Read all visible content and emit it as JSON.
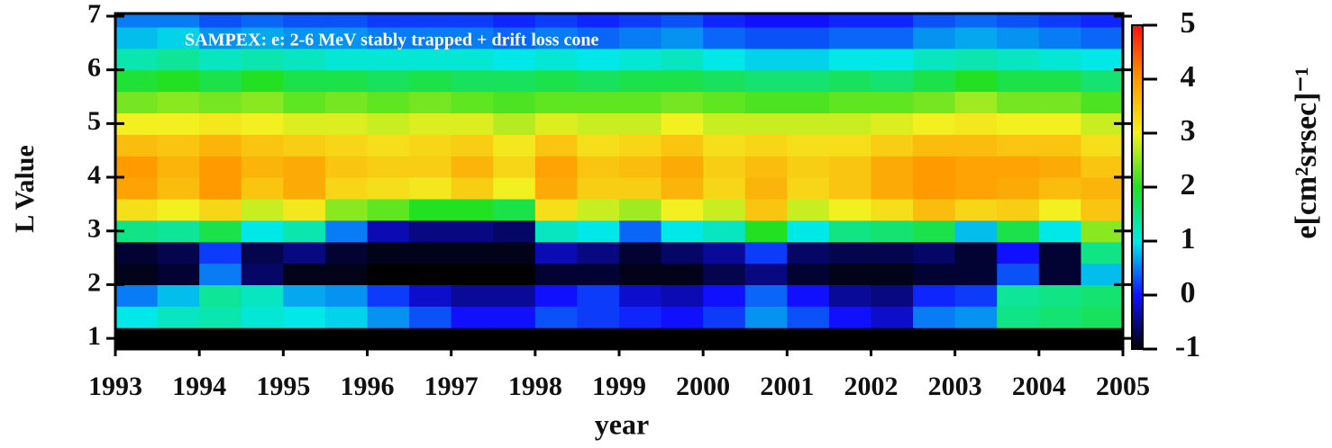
{
  "chart_data": {
    "type": "heatmap",
    "title": "SAMPEX:  e: 2-6 MeV stably trapped + drift loss cone",
    "xlabel": "year",
    "ylabel": "L Value",
    "colorbar_label": "e[cm²srsec]⁻¹",
    "x_edges": [
      1993,
      1993.5,
      1994,
      1994.5,
      1995,
      1995.5,
      1996,
      1996.5,
      1997,
      1997.5,
      1998,
      1998.5,
      1999,
      1999.5,
      2000,
      2000.5,
      2001,
      2001.5,
      2002,
      2002.5,
      2003,
      2003.5,
      2004,
      2004.5,
      2005
    ],
    "y_edges": [
      0.8,
      1.2,
      1.6,
      2.0,
      2.4,
      2.8,
      3.2,
      3.6,
      4.0,
      4.4,
      4.8,
      5.2,
      5.6,
      6.0,
      6.4,
      6.8,
      7.05
    ],
    "values": [
      [
        -1,
        -1,
        -1,
        -1,
        -1,
        -1,
        -1,
        -1,
        -1,
        -1,
        -1,
        -1,
        -1,
        -1,
        -1,
        -1,
        -1,
        -1,
        -1,
        -1,
        -1,
        -1,
        -1,
        -1
      ],
      [
        1.0,
        1.2,
        1.3,
        1.1,
        1.0,
        0.9,
        0.6,
        0.3,
        0.0,
        0.0,
        0.3,
        0.2,
        0.1,
        0.0,
        0.2,
        0.6,
        0.3,
        0.0,
        -0.2,
        0.5,
        0.6,
        1.5,
        1.6,
        1.7
      ],
      [
        0.5,
        0.8,
        1.4,
        1.2,
        0.7,
        0.6,
        0.2,
        -0.2,
        -0.4,
        -0.4,
        0.0,
        0.2,
        -0.2,
        -0.3,
        0.0,
        0.4,
        0.0,
        -0.4,
        -0.5,
        0.1,
        0.2,
        1.4,
        1.5,
        1.6
      ],
      [
        -0.9,
        -0.8,
        0.5,
        -0.6,
        -0.9,
        -0.9,
        -1,
        -1,
        -1,
        -1,
        -0.8,
        -0.8,
        -0.9,
        -0.9,
        -0.7,
        -0.5,
        -0.8,
        -0.9,
        -0.9,
        -0.8,
        -0.8,
        0.3,
        -0.8,
        0.8
      ],
      [
        -0.8,
        -0.7,
        0.2,
        -0.7,
        -0.5,
        -0.8,
        -0.9,
        -0.9,
        -0.9,
        -0.9,
        -0.3,
        -0.5,
        -0.8,
        -0.6,
        -0.4,
        0.2,
        -0.6,
        -0.7,
        -0.7,
        -0.6,
        -0.8,
        0.0,
        -0.8,
        1.5
      ],
      [
        1.5,
        1.4,
        1.8,
        1.0,
        1.3,
        0.5,
        -0.3,
        -0.5,
        -0.5,
        -0.6,
        1.2,
        1.0,
        0.4,
        1.0,
        1.2,
        2.0,
        1.0,
        1.5,
        1.6,
        1.8,
        0.8,
        1.8,
        1.0,
        2.5
      ],
      [
        3.2,
        3.0,
        3.3,
        2.8,
        3.1,
        2.5,
        2.3,
        2.0,
        2.0,
        1.8,
        3.2,
        2.8,
        2.6,
        3.0,
        2.8,
        3.5,
        2.8,
        3.0,
        3.2,
        3.6,
        3.3,
        3.4,
        3.0,
        3.5
      ],
      [
        3.9,
        3.6,
        4.0,
        3.5,
        3.8,
        3.3,
        3.2,
        3.1,
        3.4,
        3.0,
        3.8,
        3.4,
        3.4,
        3.7,
        3.3,
        3.7,
        3.3,
        3.5,
        3.8,
        4.0,
        3.9,
        3.8,
        3.6,
        3.7
      ],
      [
        4.0,
        3.7,
        4.0,
        3.7,
        3.8,
        3.5,
        3.4,
        3.4,
        3.7,
        3.3,
        3.9,
        3.5,
        3.6,
        3.8,
        3.4,
        3.6,
        3.4,
        3.5,
        3.8,
        4.0,
        3.9,
        3.9,
        3.8,
        3.5
      ],
      [
        3.6,
        3.5,
        3.7,
        3.5,
        3.4,
        3.3,
        3.2,
        3.3,
        3.4,
        3.1,
        3.5,
        3.2,
        3.3,
        3.5,
        3.2,
        3.3,
        3.2,
        3.2,
        3.4,
        3.6,
        3.6,
        3.5,
        3.5,
        3.2
      ],
      [
        3.0,
        3.0,
        3.1,
        3.0,
        2.9,
        2.9,
        2.8,
        2.9,
        2.9,
        2.7,
        2.9,
        2.8,
        2.8,
        3.0,
        2.8,
        2.8,
        2.8,
        2.8,
        2.9,
        3.0,
        3.1,
        3.0,
        3.0,
        2.8
      ],
      [
        2.4,
        2.5,
        2.4,
        2.5,
        2.3,
        2.4,
        2.3,
        2.4,
        2.3,
        2.2,
        2.3,
        2.3,
        2.3,
        2.4,
        2.3,
        2.2,
        2.2,
        2.3,
        2.3,
        2.4,
        2.6,
        2.4,
        2.4,
        2.2
      ],
      [
        1.9,
        2.0,
        1.8,
        2.0,
        1.8,
        1.8,
        1.7,
        1.8,
        1.7,
        1.7,
        1.8,
        1.7,
        1.8,
        1.8,
        1.7,
        1.6,
        1.6,
        1.7,
        1.6,
        1.8,
        2.0,
        1.8,
        1.8,
        1.6
      ],
      [
        1.3,
        1.4,
        1.2,
        1.3,
        1.2,
        1.1,
        1.1,
        1.1,
        1.1,
        1.0,
        1.1,
        1.0,
        1.1,
        1.2,
        1.0,
        0.9,
        0.9,
        1.0,
        1.0,
        1.2,
        1.3,
        1.2,
        1.1,
        1.0
      ],
      [
        0.8,
        0.9,
        0.6,
        0.7,
        0.6,
        0.6,
        0.5,
        0.5,
        0.5,
        0.4,
        0.5,
        0.4,
        0.5,
        0.6,
        0.4,
        0.3,
        0.3,
        0.4,
        0.4,
        0.6,
        0.7,
        0.6,
        0.5,
        0.4
      ],
      [
        0.5,
        0.5,
        0.3,
        0.4,
        0.3,
        0.3,
        0.2,
        0.2,
        0.2,
        0.1,
        0.2,
        0.1,
        0.2,
        0.3,
        0.1,
        0.0,
        0.0,
        0.1,
        0.1,
        0.3,
        0.4,
        0.3,
        0.2,
        0.1
      ]
    ],
    "xlim": [
      1993,
      2005
    ],
    "xticks": [
      1993,
      1994,
      1995,
      1996,
      1997,
      1998,
      1999,
      2000,
      2001,
      2002,
      2003,
      2004,
      2005
    ],
    "ylim": [
      0.8,
      7.05
    ],
    "yticks": [
      1,
      2,
      3,
      4,
      5,
      6,
      7
    ],
    "clim": [
      -1,
      5
    ],
    "cticks": [
      -1,
      0,
      1,
      2,
      3,
      4,
      5
    ],
    "colormap": [
      "#000000",
      "#1010ff",
      "#00e8e8",
      "#22e022",
      "#f2f020",
      "#ff9a00",
      "#ff1010"
    ]
  }
}
